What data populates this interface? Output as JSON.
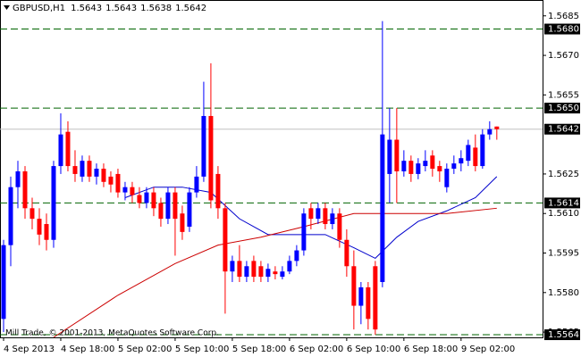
{
  "chart_data": {
    "type": "candlestick",
    "header": {
      "symbol": "GBPUSD,H1",
      "values": [
        1.5643,
        1.5643,
        1.5638,
        1.5642
      ]
    },
    "footer": "Mill Trade, © 2001-2013, MetaQuotes Software Corp.",
    "up_color": "#0000ff",
    "down_color": "#ff0000",
    "level_color": "#006400",
    "last_color": "#c0c0c0",
    "ylim": [
      1.5563,
      1.569
    ],
    "yticks": [
      1.5685,
      {
        "value": 1.567,
        "label": "1.5670"
      },
      1.5655,
      1.5625,
      {
        "value": 1.561,
        "label": "1.5610"
      },
      1.5595,
      {
        "value": 1.558,
        "label": "1.5580"
      },
      1.5565
    ],
    "xlim": [
      -0.5,
      75.4
    ],
    "xticks": [
      {
        "value": 0,
        "label": "4 Sep 2013"
      },
      {
        "value": 8,
        "label": "4 Sep 18:00"
      },
      {
        "value": 16,
        "label": "5 Sep 02:00"
      },
      {
        "value": 24,
        "label": "5 Sep 10:00"
      },
      {
        "value": 32,
        "label": "5 Sep 18:00"
      },
      {
        "value": 40,
        "label": "6 Sep 02:00"
      },
      {
        "value": 48,
        "label": "6 Sep 10:00"
      },
      {
        "value": 56,
        "label": "6 Sep 18:00"
      },
      {
        "value": 64,
        "label": "9 Sep 02:00"
      }
    ],
    "levels": [
      {
        "value": 1.568,
        "label": "1.5680"
      },
      {
        "value": 1.565,
        "label": "1.5650"
      },
      1.5614,
      1.5564
    ],
    "last_price": 1.5642,
    "candles": [
      [
        1.557,
        1.56,
        1.5565,
        1.5598
      ],
      [
        1.5598,
        1.5624,
        1.559,
        1.562
      ],
      [
        1.562,
        1.563,
        1.5612,
        1.5626
      ],
      [
        1.5626,
        1.5628,
        1.5608,
        1.5612
      ],
      [
        1.5612,
        1.5616,
        1.5604,
        1.5608
      ],
      [
        1.5608,
        1.5612,
        1.5598,
        1.5602
      ],
      [
        1.5606,
        1.561,
        1.5596,
        1.56
      ],
      [
        1.56,
        1.563,
        1.5597,
        1.5628
      ],
      [
        1.5628,
        1.5648,
        1.5625,
        1.564
      ],
      [
        1.5641,
        1.5645,
        1.5626,
        1.5628
      ],
      [
        1.5628,
        1.5634,
        1.5622,
        1.5625
      ],
      [
        1.5624,
        1.5632,
        1.5622,
        1.563
      ],
      [
        1.563,
        1.5632,
        1.5622,
        1.5624
      ],
      [
        1.5624,
        1.5629,
        1.5621,
        1.5627
      ],
      [
        1.5627,
        1.5629,
        1.562,
        1.5622
      ],
      [
        1.5624,
        1.5626,
        1.5618,
        1.5621
      ],
      [
        1.5625,
        1.5627,
        1.5616,
        1.5618
      ],
      [
        1.5618,
        1.5622,
        1.5615,
        1.562
      ],
      [
        1.562,
        1.5622,
        1.5614,
        1.5617
      ],
      [
        1.5617,
        1.562,
        1.5612,
        1.5614
      ],
      [
        1.5614,
        1.562,
        1.5612,
        1.5618
      ],
      [
        1.5618,
        1.562,
        1.5609,
        1.5612
      ],
      [
        1.5614,
        1.5616,
        1.5605,
        1.5608
      ],
      [
        1.5608,
        1.562,
        1.5606,
        1.5618
      ],
      [
        1.5618,
        1.562,
        1.5594,
        1.5608
      ],
      [
        1.561,
        1.5613,
        1.56,
        1.5603
      ],
      [
        1.5605,
        1.562,
        1.5603,
        1.5618
      ],
      [
        1.5618,
        1.5628,
        1.5616,
        1.5624
      ],
      [
        1.5624,
        1.566,
        1.5622,
        1.5647
      ],
      [
        1.5647,
        1.5667,
        1.5612,
        1.5615
      ],
      [
        1.5625,
        1.5628,
        1.5608,
        1.5612
      ],
      [
        1.5612,
        1.5614,
        1.5572,
        1.5588
      ],
      [
        1.5588,
        1.5594,
        1.5584,
        1.5592
      ],
      [
        1.5592,
        1.5598,
        1.5584,
        1.5586
      ],
      [
        1.5586,
        1.5592,
        1.5584,
        1.559
      ],
      [
        1.5592,
        1.5594,
        1.5584,
        1.5586
      ],
      [
        1.559,
        1.5592,
        1.5584,
        1.5586
      ],
      [
        1.5586,
        1.5591,
        1.5584,
        1.5589
      ],
      [
        1.5588,
        1.559,
        1.5585,
        1.5587
      ],
      [
        1.5586,
        1.559,
        1.5585,
        1.5588
      ],
      [
        1.5588,
        1.5594,
        1.5587,
        1.5592
      ],
      [
        1.5592,
        1.5598,
        1.559,
        1.5596
      ],
      [
        1.5596,
        1.5612,
        1.5594,
        1.561
      ],
      [
        1.5612,
        1.5614,
        1.5604,
        1.5608
      ],
      [
        1.5608,
        1.5614,
        1.5606,
        1.5612
      ],
      [
        1.5612,
        1.5614,
        1.5604,
        1.5606
      ],
      [
        1.5606,
        1.5612,
        1.5604,
        1.561
      ],
      [
        1.561,
        1.5612,
        1.5597,
        1.56
      ],
      [
        1.56,
        1.5604,
        1.5586,
        1.559
      ],
      [
        1.559,
        1.5596,
        1.5566,
        1.5575
      ],
      [
        1.5575,
        1.5584,
        1.5568,
        1.5582
      ],
      [
        1.5582,
        1.5584,
        1.5566,
        1.557
      ],
      [
        1.559,
        1.5592,
        1.5564,
        1.5566
      ],
      [
        1.5584,
        1.5683,
        1.5582,
        1.564
      ],
      [
        1.5625,
        1.565,
        1.5614,
        1.5638
      ],
      [
        1.5638,
        1.565,
        1.5614,
        1.5626
      ],
      [
        1.5626,
        1.5634,
        1.5624,
        1.563
      ],
      [
        1.563,
        1.5632,
        1.5622,
        1.5625
      ],
      [
        1.5625,
        1.5631,
        1.5623,
        1.5629
      ],
      [
        1.5628,
        1.5634,
        1.5626,
        1.563
      ],
      [
        1.5632,
        1.5634,
        1.5624,
        1.5627
      ],
      [
        1.5628,
        1.563,
        1.5622,
        1.5626
      ],
      [
        1.562,
        1.5629,
        1.5618,
        1.5627
      ],
      [
        1.5627,
        1.5632,
        1.5625,
        1.5629
      ],
      [
        1.5629,
        1.5634,
        1.5626,
        1.5631
      ],
      [
        1.563,
        1.5638,
        1.5628,
        1.5636
      ],
      [
        1.5635,
        1.564,
        1.5626,
        1.5628
      ],
      [
        1.5628,
        1.5642,
        1.5627,
        1.564
      ],
      [
        1.564,
        1.5645,
        1.5638,
        1.5642
      ],
      [
        1.5643,
        1.5643,
        1.5638,
        1.5642
      ]
    ],
    "overlays": [
      {
        "color": "#0000cc",
        "x": [
          17,
          21,
          25,
          29,
          33,
          37,
          41,
          45,
          49,
          52,
          55,
          58,
          62,
          66,
          69
        ],
        "values": [
          1.5616,
          1.562,
          1.562,
          1.5618,
          1.5608,
          1.5602,
          1.5602,
          1.5602,
          1.5597,
          1.5593,
          1.5601,
          1.5607,
          1.5611,
          1.5616,
          1.5624
        ]
      },
      {
        "color": "#cc0000",
        "x": [
          7,
          16,
          24,
          30,
          36,
          42,
          49,
          56,
          62,
          69
        ],
        "values": [
          1.5563,
          1.5579,
          1.5591,
          1.5598,
          1.5601,
          1.5605,
          1.561,
          1.561,
          1.561,
          1.5612
        ]
      }
    ]
  }
}
